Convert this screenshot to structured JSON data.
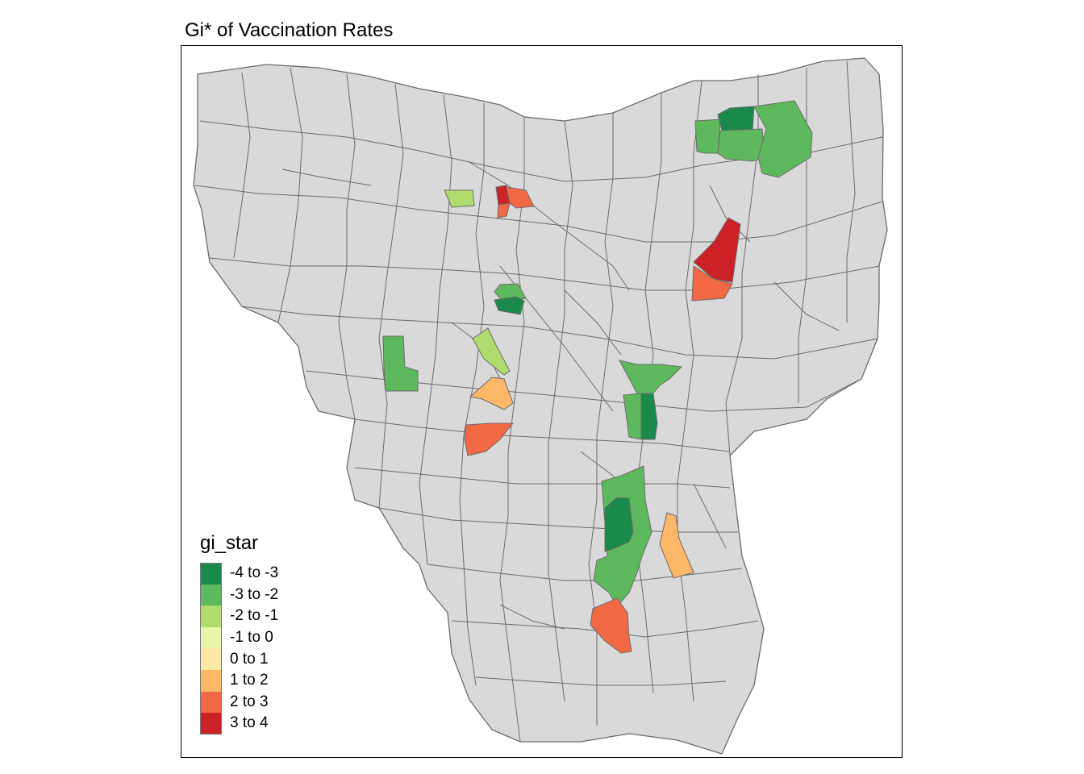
{
  "title": "Gi* of Vaccination Rates",
  "legend": {
    "title": "gi_star",
    "classes": [
      {
        "label": "-4 to -3",
        "color": "#1a8a4b"
      },
      {
        "label": "-3 to -2",
        "color": "#5eb95e"
      },
      {
        "label": "-2 to -1",
        "color": "#b0dc6d"
      },
      {
        "label": "-1 to 0",
        "color": "#e6f5a8"
      },
      {
        "label": "0 to 1",
        "color": "#fde9a6"
      },
      {
        "label": "1 to 2",
        "color": "#fcb768"
      },
      {
        "label": "2 to 3",
        "color": "#f26845"
      },
      {
        "label": "3 to 4",
        "color": "#cc2127"
      }
    ]
  },
  "colors": {
    "no_significance_fill": "#d9d9d9",
    "boundary_stroke": "#6b6b6b"
  }
}
